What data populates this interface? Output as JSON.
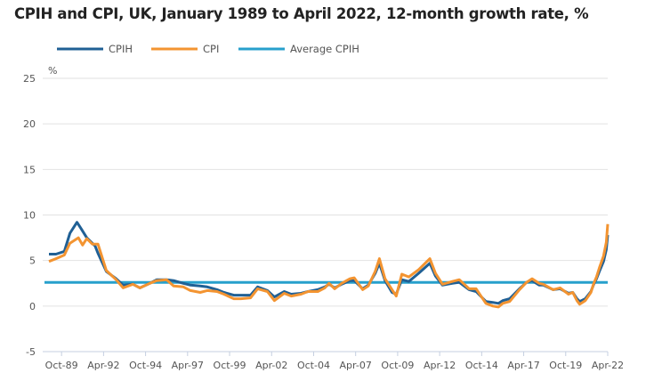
{
  "chart_data": {
    "type": "line",
    "title": "CPIH and CPI, UK, January 1989 to April 2022, 12-month growth rate, %",
    "ylabel": "%",
    "xlabel": "",
    "ylim": [
      -5,
      25
    ],
    "yticks": [
      25,
      20,
      15,
      10,
      5,
      0,
      -5
    ],
    "xlim": [
      "1989-01",
      "2022-04"
    ],
    "xticks": [
      "Oct-89",
      "Apr-92",
      "Oct-94",
      "Apr-97",
      "Oct-99",
      "Apr-02",
      "Oct-04",
      "Apr-07",
      "Oct-09",
      "Apr-12",
      "Oct-14",
      "Apr-17",
      "Oct-19",
      "Apr-22"
    ],
    "grid": true,
    "legend_position": "top",
    "series": [
      {
        "name": "CPIH",
        "color": "#206095",
        "points": [
          [
            "1989-01",
            5.7
          ],
          [
            "1989-06",
            5.7
          ],
          [
            "1989-12",
            6.0
          ],
          [
            "1990-04",
            8.0
          ],
          [
            "1990-09",
            9.2
          ],
          [
            "1990-12",
            8.5
          ],
          [
            "1991-04",
            7.5
          ],
          [
            "1991-10",
            6.6
          ],
          [
            "1991-12",
            5.8
          ],
          [
            "1992-06",
            3.8
          ],
          [
            "1993-01",
            3.0
          ],
          [
            "1993-06",
            2.3
          ],
          [
            "1994-01",
            2.4
          ],
          [
            "1994-06",
            2.0
          ],
          [
            "1995-01",
            2.5
          ],
          [
            "1995-06",
            2.9
          ],
          [
            "1996-01",
            2.9
          ],
          [
            "1996-06",
            2.8
          ],
          [
            "1997-01",
            2.5
          ],
          [
            "1997-06",
            2.3
          ],
          [
            "1998-01",
            2.2
          ],
          [
            "1998-06",
            2.1
          ],
          [
            "1999-01",
            1.8
          ],
          [
            "1999-06",
            1.5
          ],
          [
            "2000-01",
            1.2
          ],
          [
            "2000-06",
            1.2
          ],
          [
            "2001-01",
            1.2
          ],
          [
            "2001-06",
            2.1
          ],
          [
            "2002-01",
            1.7
          ],
          [
            "2002-06",
            1.0
          ],
          [
            "2003-01",
            1.6
          ],
          [
            "2003-06",
            1.3
          ],
          [
            "2004-01",
            1.4
          ],
          [
            "2004-06",
            1.6
          ],
          [
            "2005-01",
            1.8
          ],
          [
            "2005-06",
            2.1
          ],
          [
            "2005-09",
            2.4
          ],
          [
            "2006-01",
            2.0
          ],
          [
            "2006-06",
            2.4
          ],
          [
            "2006-12",
            2.8
          ],
          [
            "2007-03",
            2.8
          ],
          [
            "2007-09",
            1.9
          ],
          [
            "2008-01",
            2.3
          ],
          [
            "2008-06",
            3.6
          ],
          [
            "2008-09",
            4.7
          ],
          [
            "2009-01",
            2.8
          ],
          [
            "2009-06",
            1.5
          ],
          [
            "2009-09",
            1.3
          ],
          [
            "2010-01",
            2.9
          ],
          [
            "2010-06",
            2.7
          ],
          [
            "2011-01",
            3.6
          ],
          [
            "2011-09",
            4.7
          ],
          [
            "2012-01",
            3.3
          ],
          [
            "2012-06",
            2.3
          ],
          [
            "2013-01",
            2.5
          ],
          [
            "2013-06",
            2.6
          ],
          [
            "2014-01",
            1.8
          ],
          [
            "2014-06",
            1.6
          ],
          [
            "2015-01",
            0.5
          ],
          [
            "2015-06",
            0.4
          ],
          [
            "2015-10",
            0.3
          ],
          [
            "2016-01",
            0.6
          ],
          [
            "2016-06",
            0.8
          ],
          [
            "2017-01",
            1.9
          ],
          [
            "2017-06",
            2.6
          ],
          [
            "2017-10",
            2.8
          ],
          [
            "2018-03",
            2.3
          ],
          [
            "2018-06",
            2.3
          ],
          [
            "2019-01",
            1.8
          ],
          [
            "2019-06",
            1.9
          ],
          [
            "2019-12",
            1.4
          ],
          [
            "2020-03",
            1.5
          ],
          [
            "2020-06",
            0.8
          ],
          [
            "2020-08",
            0.5
          ],
          [
            "2020-12",
            0.8
          ],
          [
            "2021-04",
            1.6
          ],
          [
            "2021-06",
            2.4
          ],
          [
            "2021-08",
            3.0
          ],
          [
            "2021-10",
            3.8
          ],
          [
            "2022-01",
            4.9
          ],
          [
            "2022-03",
            6.2
          ],
          [
            "2022-04",
            7.8
          ]
        ]
      },
      {
        "name": "CPI",
        "color": "#F39431",
        "points": [
          [
            "1989-01",
            4.9
          ],
          [
            "1989-06",
            5.2
          ],
          [
            "1989-12",
            5.6
          ],
          [
            "1990-04",
            6.9
          ],
          [
            "1990-10",
            7.5
          ],
          [
            "1991-01",
            6.7
          ],
          [
            "1991-04",
            7.4
          ],
          [
            "1991-08",
            6.8
          ],
          [
            "1991-12",
            6.8
          ],
          [
            "1992-06",
            3.9
          ],
          [
            "1993-01",
            2.9
          ],
          [
            "1993-06",
            2.0
          ],
          [
            "1994-01",
            2.4
          ],
          [
            "1994-06",
            2.0
          ],
          [
            "1995-01",
            2.5
          ],
          [
            "1995-06",
            2.8
          ],
          [
            "1996-01",
            2.9
          ],
          [
            "1996-06",
            2.2
          ],
          [
            "1997-01",
            2.1
          ],
          [
            "1997-06",
            1.7
          ],
          [
            "1998-01",
            1.5
          ],
          [
            "1998-06",
            1.7
          ],
          [
            "1999-01",
            1.6
          ],
          [
            "1999-06",
            1.3
          ],
          [
            "2000-01",
            0.8
          ],
          [
            "2000-06",
            0.8
          ],
          [
            "2001-01",
            0.9
          ],
          [
            "2001-06",
            1.9
          ],
          [
            "2002-01",
            1.6
          ],
          [
            "2002-06",
            0.6
          ],
          [
            "2003-01",
            1.4
          ],
          [
            "2003-06",
            1.1
          ],
          [
            "2004-01",
            1.3
          ],
          [
            "2004-06",
            1.6
          ],
          [
            "2005-01",
            1.6
          ],
          [
            "2005-06",
            2.0
          ],
          [
            "2005-09",
            2.5
          ],
          [
            "2006-01",
            1.9
          ],
          [
            "2006-06",
            2.5
          ],
          [
            "2006-12",
            3.0
          ],
          [
            "2007-03",
            3.1
          ],
          [
            "2007-09",
            1.8
          ],
          [
            "2008-01",
            2.2
          ],
          [
            "2008-06",
            3.8
          ],
          [
            "2008-09",
            5.2
          ],
          [
            "2009-01",
            3.0
          ],
          [
            "2009-06",
            1.8
          ],
          [
            "2009-09",
            1.1
          ],
          [
            "2010-01",
            3.5
          ],
          [
            "2010-06",
            3.2
          ],
          [
            "2011-01",
            4.0
          ],
          [
            "2011-09",
            5.2
          ],
          [
            "2012-01",
            3.6
          ],
          [
            "2012-06",
            2.4
          ],
          [
            "2013-01",
            2.7
          ],
          [
            "2013-06",
            2.9
          ],
          [
            "2014-01",
            1.9
          ],
          [
            "2014-06",
            1.9
          ],
          [
            "2015-01",
            0.3
          ],
          [
            "2015-06",
            0.0
          ],
          [
            "2015-10",
            -0.1
          ],
          [
            "2016-01",
            0.3
          ],
          [
            "2016-06",
            0.5
          ],
          [
            "2017-01",
            1.8
          ],
          [
            "2017-06",
            2.6
          ],
          [
            "2017-10",
            3.0
          ],
          [
            "2018-03",
            2.5
          ],
          [
            "2018-06",
            2.4
          ],
          [
            "2019-01",
            1.8
          ],
          [
            "2019-06",
            2.0
          ],
          [
            "2019-12",
            1.3
          ],
          [
            "2020-03",
            1.5
          ],
          [
            "2020-06",
            0.6
          ],
          [
            "2020-08",
            0.2
          ],
          [
            "2020-12",
            0.6
          ],
          [
            "2021-04",
            1.5
          ],
          [
            "2021-06",
            2.5
          ],
          [
            "2021-08",
            3.2
          ],
          [
            "2021-10",
            4.2
          ],
          [
            "2022-01",
            5.5
          ],
          [
            "2022-03",
            7.0
          ],
          [
            "2022-04",
            9.0
          ]
        ]
      },
      {
        "name": "Average CPIH",
        "color": "#27A0CC",
        "constant": 2.6
      }
    ]
  }
}
